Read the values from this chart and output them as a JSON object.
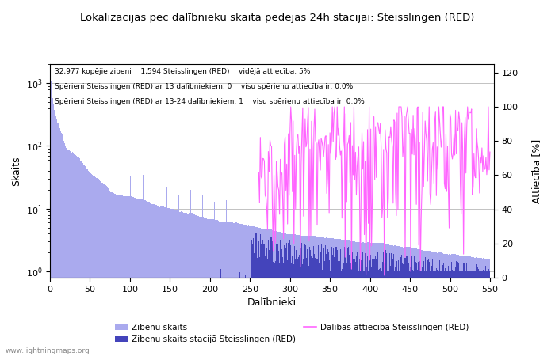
{
  "title": "Lokalizācijas pēc dalībnieku skaita pēdējās 24h stacijai: Steisslingen (RED)",
  "xlabel": "Dalībnieki",
  "ylabel_left": "Skaits",
  "ylabel_right": "Attiecība [%]",
  "annotation_lines": [
    "32,977 kopējie zibeni    1,594 Steisslingen (RED)    vidējā attiecība: 5%",
    "Spērieni Steisslingen (RED) ar 13 dalībniekiem: 0    visu spērienu attiecība ir: 0.0%",
    "Spērieni Steisslingen (RED) ar 13-24 dalībniekiem: 1    visu spērienu attiecība ir: 0.0%"
  ],
  "xlim": [
    0,
    555
  ],
  "ylim_right": [
    0,
    125
  ],
  "right_ticks": [
    0,
    20,
    40,
    60,
    80,
    100,
    120
  ],
  "watermark": "www.lightningmaps.org",
  "bar_color_global": "#aaaaee",
  "bar_color_station": "#4444bb",
  "line_color": "#ff66ff",
  "background_color": "#ffffff",
  "grid_color": "#aaaaaa",
  "legend_labels": [
    "Zibenu skaits",
    "Zibenu skaits stacijā Steisslingen (RED)",
    "Dalības attiecība Steisslingen (RED)"
  ]
}
